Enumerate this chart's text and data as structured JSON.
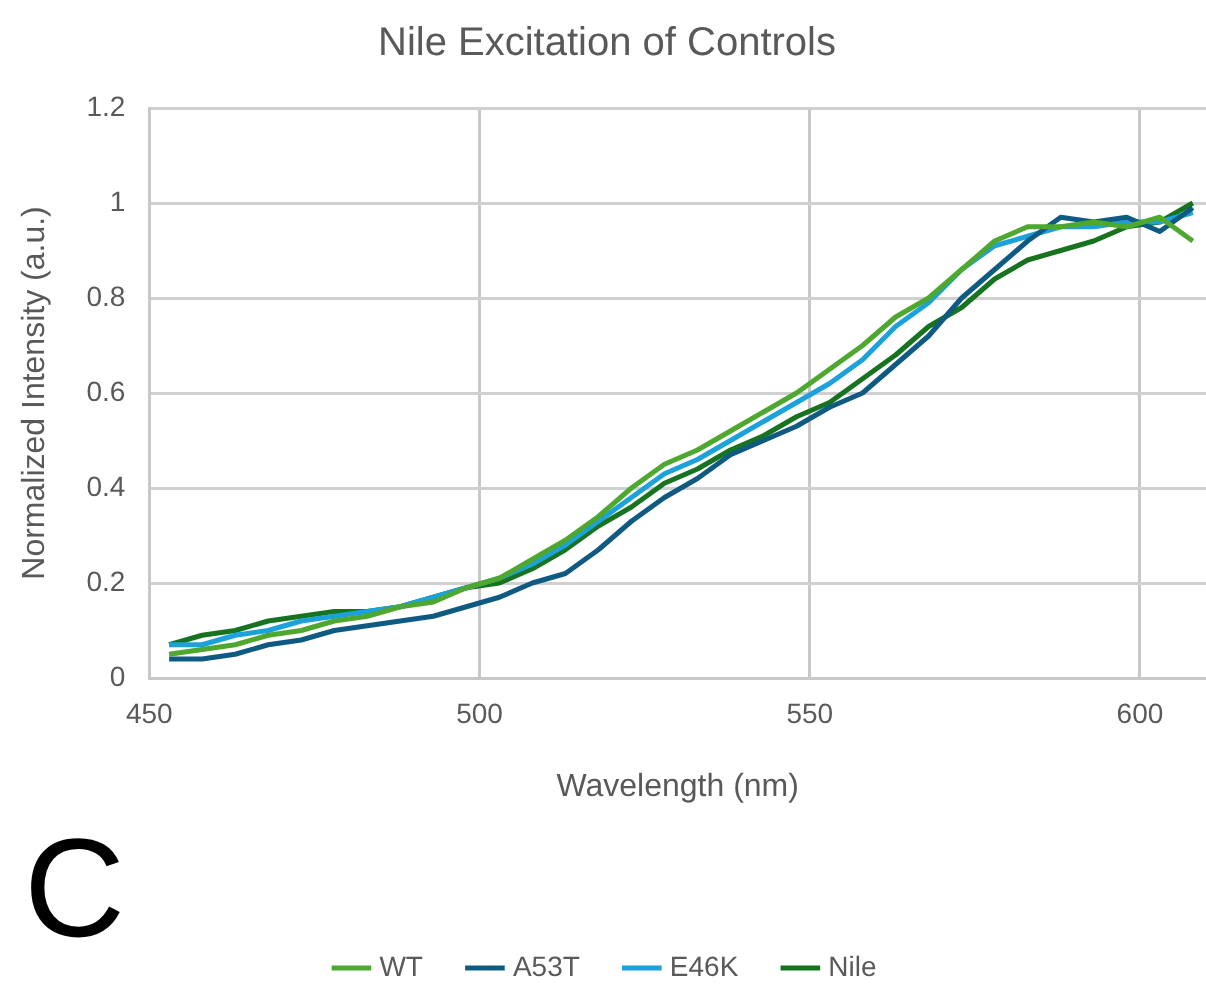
{
  "chart_data": {
    "type": "line",
    "title": "Nile Excitation of Controls",
    "xlabel": "Wavelength (nm)",
    "ylabel": "Normalized Intensity (a.u.)",
    "x": [
      453,
      458,
      463,
      468,
      473,
      478,
      483,
      488,
      493,
      498,
      503,
      508,
      513,
      518,
      523,
      528,
      533,
      538,
      543,
      548,
      553,
      558,
      563,
      568,
      573,
      578,
      583,
      588,
      593,
      598,
      603,
      608
    ],
    "series": [
      {
        "name": "WT",
        "color": "#4ea72e",
        "values": [
          0.05,
          0.06,
          0.07,
          0.09,
          0.1,
          0.12,
          0.13,
          0.15,
          0.16,
          0.19,
          0.21,
          0.25,
          0.29,
          0.34,
          0.4,
          0.45,
          0.48,
          0.52,
          0.56,
          0.6,
          0.65,
          0.7,
          0.76,
          0.8,
          0.86,
          0.92,
          0.95,
          0.95,
          0.96,
          0.95,
          0.97,
          0.92
        ]
      },
      {
        "name": "A53T",
        "color": "#0e5a82",
        "values": [
          0.04,
          0.04,
          0.05,
          0.07,
          0.08,
          0.1,
          0.11,
          0.12,
          0.13,
          0.15,
          0.17,
          0.2,
          0.22,
          0.27,
          0.33,
          0.38,
          0.42,
          0.47,
          0.5,
          0.53,
          0.57,
          0.6,
          0.66,
          0.72,
          0.8,
          0.86,
          0.92,
          0.97,
          0.96,
          0.97,
          0.94,
          0.99
        ]
      },
      {
        "name": "E46K",
        "color": "#1ba1dc",
        "values": [
          0.07,
          0.07,
          0.09,
          0.1,
          0.12,
          0.13,
          0.14,
          0.15,
          0.17,
          0.19,
          0.21,
          0.24,
          0.28,
          0.33,
          0.38,
          0.43,
          0.46,
          0.5,
          0.54,
          0.58,
          0.62,
          0.67,
          0.74,
          0.79,
          0.86,
          0.91,
          0.93,
          0.95,
          0.95,
          0.96,
          0.96,
          0.98
        ]
      },
      {
        "name": "Nile",
        "color": "#17731f",
        "values": [
          0.07,
          0.09,
          0.1,
          0.12,
          0.13,
          0.14,
          0.14,
          0.15,
          0.17,
          0.19,
          0.2,
          0.23,
          0.27,
          0.32,
          0.36,
          0.41,
          0.44,
          0.48,
          0.51,
          0.55,
          0.58,
          0.63,
          0.68,
          0.74,
          0.78,
          0.84,
          0.88,
          0.9,
          0.92,
          0.95,
          0.96,
          1.0
        ]
      }
    ],
    "xlim": [
      450,
      610
    ],
    "xticks": [
      450,
      500,
      550,
      600
    ],
    "ylim": [
      0,
      1.2
    ],
    "yticks": [
      0,
      0.2,
      0.4,
      0.6,
      0.8,
      1,
      1.2
    ],
    "grid": true,
    "legend": "bottom",
    "marker": "none",
    "line_style": "solid",
    "annotations": [
      "C"
    ]
  }
}
